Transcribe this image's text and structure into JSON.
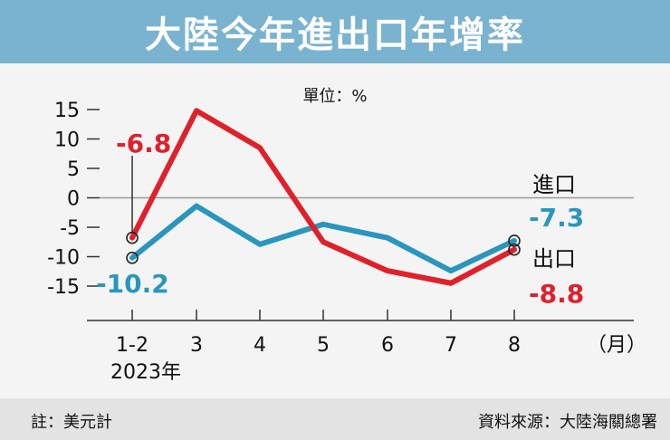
{
  "colors": {
    "title_bg": "#7ab3cf",
    "export": "#e0202a",
    "import": "#2a96bd",
    "axis": "#333333",
    "zero_line": "#999999"
  },
  "chart_data": {
    "type": "line",
    "title": "大陸今年進出口年增率",
    "unit_label": "單位：%",
    "categories": [
      "1-2",
      "3",
      "4",
      "5",
      "6",
      "7",
      "8"
    ],
    "x_unit_label": "（月）",
    "year_label": "2023年",
    "yticks": [
      "15",
      "10",
      "5",
      "0",
      "-5",
      "-10",
      "-15"
    ],
    "ylim": [
      -15,
      15
    ],
    "series": [
      {
        "name": "出口",
        "color": "#e0202a",
        "values": [
          -6.8,
          14.8,
          8.5,
          -7.5,
          -12.4,
          -14.5,
          -8.8
        ],
        "first_label": "-6.8",
        "last_label": "-8.8"
      },
      {
        "name": "進口",
        "color": "#2a96bd",
        "values": [
          -10.2,
          -1.4,
          -7.9,
          -4.5,
          -6.8,
          -12.4,
          -7.3
        ],
        "first_label": "-10.2",
        "last_label": "-7.3"
      }
    ]
  },
  "footer": {
    "note": "註：美元計",
    "source": "資料來源：大陸海關總署"
  }
}
